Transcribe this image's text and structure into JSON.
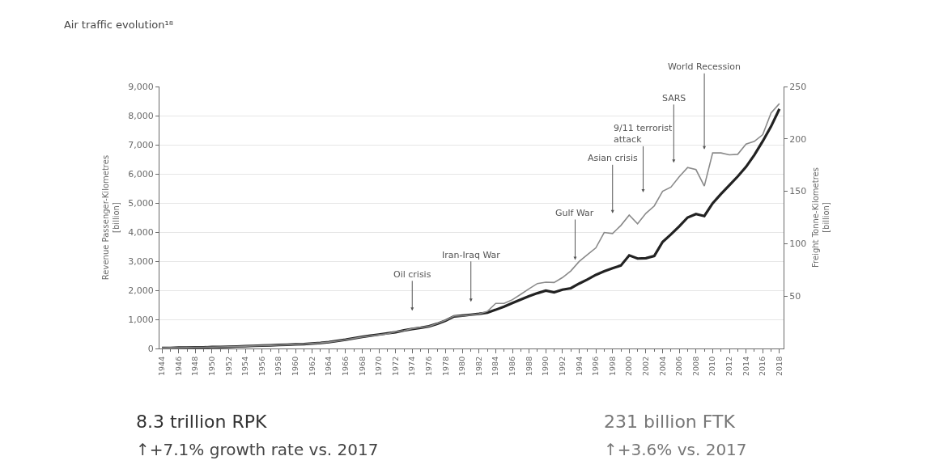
{
  "chart_data": {
    "type": "line",
    "title": "Air traffic evolution¹⁸",
    "ylabel": "Revenue Passenger-Kilometres\n[billion]",
    "y2label": "Freight Tonne-Kilometres\n[billion]",
    "x": [
      1944,
      1945,
      1946,
      1947,
      1948,
      1949,
      1950,
      1951,
      1952,
      1953,
      1954,
      1955,
      1956,
      1957,
      1958,
      1959,
      1960,
      1961,
      1962,
      1963,
      1964,
      1965,
      1966,
      1967,
      1968,
      1969,
      1970,
      1971,
      1972,
      1973,
      1974,
      1975,
      1976,
      1977,
      1978,
      1979,
      1980,
      1981,
      1982,
      1983,
      1984,
      1985,
      1986,
      1987,
      1988,
      1989,
      1990,
      1991,
      1992,
      1993,
      1994,
      1995,
      1996,
      1997,
      1998,
      1999,
      2000,
      2001,
      2002,
      2003,
      2004,
      2005,
      2006,
      2007,
      2008,
      2009,
      2010,
      2011,
      2012,
      2013,
      2014,
      2015,
      2016,
      2017,
      2018
    ],
    "series": [
      {
        "color": "#222222",
        "values": [
          20,
          20,
          30,
          30,
          40,
          40,
          50,
          50,
          60,
          70,
          80,
          90,
          100,
          110,
          120,
          130,
          140,
          150,
          170,
          190,
          220,
          260,
          300,
          350,
          400,
          440,
          480,
          520,
          560,
          620,
          670,
          710,
          760,
          850,
          960,
          1100,
          1130,
          1160,
          1190,
          1230,
          1330,
          1440,
          1560,
          1680,
          1800,
          1900,
          1990,
          1930,
          2020,
          2070,
          2230,
          2370,
          2530,
          2650,
          2760,
          2850,
          3200,
          3090,
          3100,
          3180,
          3660,
          3920,
          4200,
          4500,
          4620,
          4550,
          4990,
          5310,
          5610,
          5910,
          6240,
          6650,
          7120,
          7630,
          8230
        ]
      },
      {
        "color": "#8a8a8a",
        "axis": "y2",
        "values": [
          0.5,
          0.7,
          0.8,
          1,
          1.1,
          1.2,
          1.4,
          1.5,
          1.7,
          1.9,
          2.2,
          2.5,
          2.8,
          3,
          3.3,
          3.6,
          3.9,
          4.2,
          4.7,
          5.3,
          6.1,
          7.2,
          8.3,
          9.7,
          11,
          12,
          13,
          14,
          16,
          17,
          19,
          20,
          21,
          24,
          27,
          31,
          31,
          32,
          33,
          35.5,
          43,
          43,
          46.6,
          51.7,
          57,
          62,
          63.3,
          63,
          67.7,
          74,
          83,
          89.6,
          96,
          110.7,
          109.7,
          117.4,
          127.4,
          119,
          129,
          136,
          150,
          154,
          164,
          172.7,
          170.7,
          155,
          186.6,
          186.6,
          184.8,
          185.3,
          195,
          197.7,
          204,
          224.7,
          233.7
        ]
      }
    ],
    "xlim": [
      1943.7,
      2018.5
    ],
    "xticks": [
      1944,
      1946,
      1948,
      1950,
      1952,
      1954,
      1956,
      1958,
      1960,
      1962,
      1964,
      1966,
      1968,
      1970,
      1972,
      1974,
      1976,
      1978,
      1980,
      1982,
      1984,
      1986,
      1988,
      1990,
      1992,
      1994,
      1996,
      1998,
      2000,
      2002,
      2004,
      2006,
      2008,
      2010,
      2012,
      2014,
      2016,
      2018
    ],
    "ylim": [
      0,
      9000
    ],
    "yticks": [
      {
        "value": 0,
        "label": "0"
      },
      {
        "value": 1000,
        "label": "1,000"
      },
      {
        "value": 2000,
        "label": "2,000"
      },
      {
        "value": 3000,
        "label": "3,000"
      },
      {
        "value": 4000,
        "label": "4,000"
      },
      {
        "value": 5000,
        "label": "5,000"
      },
      {
        "value": 6000,
        "label": "6,000"
      },
      {
        "value": 7000,
        "label": "7,000"
      },
      {
        "value": 8000,
        "label": "8,000"
      },
      {
        "value": 9000,
        "label": "9,000"
      }
    ],
    "y2lim": [
      0,
      250
    ],
    "y2ticks": [
      50,
      100,
      150,
      200,
      250
    ],
    "grid": "y",
    "marker": "none",
    "line_style": "solid",
    "annotations": [
      "Oil crisis",
      "Iran-Iraq War",
      "Gulf War",
      "Asian crisis",
      "9/11 terrorist\nattack",
      "SARS",
      "World Recession",
      "8.3 trillion RPK",
      "↑+7.1% growth rate vs. 2017",
      "231 billion FTK",
      "↑+3.6% vs. 2017"
    ]
  }
}
